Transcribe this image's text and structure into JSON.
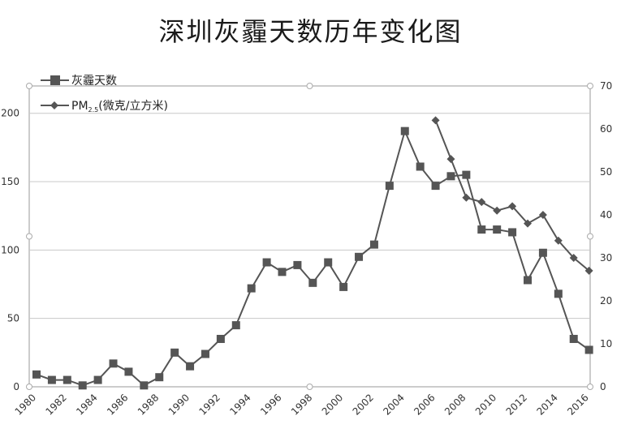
{
  "title": "深圳灰霾天数历年变化图",
  "chart_data": {
    "type": "line",
    "title": "深圳灰霾天数历年变化图",
    "x_ticks": [
      1980,
      1982,
      1984,
      1986,
      1988,
      1990,
      1992,
      1994,
      1996,
      1998,
      2000,
      2002,
      2004,
      2006,
      2008,
      2010,
      2012,
      2014,
      2016
    ],
    "x_range": [
      1980,
      2016
    ],
    "y_left": {
      "range": [
        0,
        220
      ],
      "ticks": [
        0,
        50,
        100,
        150,
        200
      ]
    },
    "y_right": {
      "range": [
        0,
        70
      ],
      "ticks": [
        0,
        10,
        20,
        30,
        40,
        50,
        60,
        70
      ]
    },
    "grid": true,
    "legend_position": "top-left",
    "colors": {
      "haze": "#555555",
      "pm": "#555555",
      "grid": "#c8c8c8",
      "axis": "#999999"
    },
    "series": [
      {
        "name": "灰霾天数",
        "axis": "left",
        "marker": "square",
        "x": [
          1980,
          1981,
          1982,
          1983,
          1984,
          1985,
          1986,
          1987,
          1988,
          1989,
          1990,
          1991,
          1992,
          1993,
          1994,
          1995,
          1996,
          1997,
          1998,
          1999,
          2000,
          2001,
          2002,
          2003,
          2004,
          2005,
          2006,
          2007,
          2008,
          2009,
          2010,
          2011,
          2012,
          2013,
          2014,
          2015,
          2016
        ],
        "values": [
          9,
          5,
          5,
          1,
          5,
          17,
          11,
          1,
          7,
          25,
          15,
          24,
          35,
          45,
          72,
          91,
          84,
          89,
          76,
          91,
          73,
          95,
          104,
          147,
          187,
          161,
          147,
          154,
          155,
          115,
          115,
          113,
          78,
          98,
          68,
          35,
          27
        ]
      },
      {
        "name": "PM2.5(微克/立方米)",
        "name_main": "PM",
        "name_sub": "2.5",
        "name_rest": "(微克/立方米)",
        "axis": "right",
        "marker": "diamond",
        "x": [
          2006,
          2007,
          2008,
          2009,
          2010,
          2011,
          2012,
          2013,
          2014,
          2015,
          2016
        ],
        "values": [
          62,
          53,
          44,
          43,
          41,
          42,
          38,
          40,
          34,
          30,
          27
        ]
      }
    ]
  }
}
